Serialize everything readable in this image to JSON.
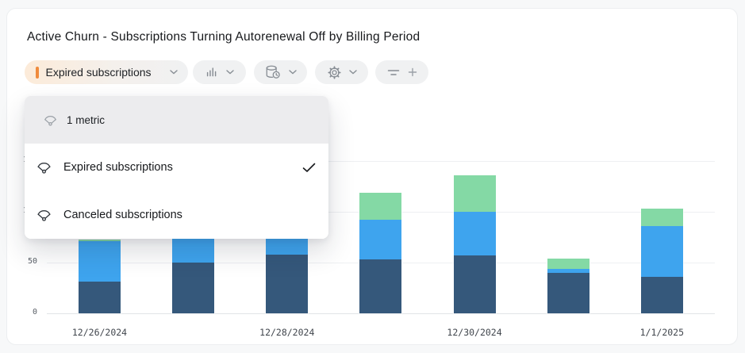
{
  "header": {
    "title": "Active Churn - Subscriptions Turning Autorenewal Off by Billing Period"
  },
  "toolbar": {
    "metric_button": {
      "label": "Expired subscriptions",
      "accent_color": "#f08b3c",
      "chevron_icon": "chevron-down-icon"
    },
    "chart_type_button": {
      "icon": "bar-chart-icon",
      "chevron_icon": "chevron-down-icon"
    },
    "data_source_button": {
      "icon": "database-clock-icon",
      "chevron_icon": "chevron-down-icon"
    },
    "settings_button": {
      "icon": "gear-icon",
      "chevron_icon": "chevron-down-icon"
    },
    "filter_button": {
      "icons": [
        "filter-lines-icon",
        "plus-icon"
      ]
    }
  },
  "metric_dropdown": {
    "header": {
      "icon": "gauge-icon",
      "label": "1 metric"
    },
    "items": [
      {
        "icon": "gauge-icon",
        "label": "Expired subscriptions",
        "selected": true
      },
      {
        "icon": "gauge-icon",
        "label": "Canceled subscriptions",
        "selected": false
      }
    ]
  },
  "chart_data": {
    "type": "bar",
    "stacked": true,
    "categories": [
      "12/26/2024",
      "",
      "12/28/2024",
      "",
      "12/30/2024",
      "",
      "1/1/2025"
    ],
    "x_tick_labels": [
      "12/26/2024",
      "12/28/2024",
      "12/30/2024",
      "1/1/2025"
    ],
    "y_ticks": [
      0,
      50,
      100,
      150
    ],
    "y_tick_labels": [
      "0",
      "50",
      "100",
      "150"
    ],
    "ylim": [
      0,
      150
    ],
    "grid": "horizontal",
    "legend": "none",
    "series": [
      {
        "name": "dark-blue",
        "color": "#35587b",
        "values": [
          31,
          50,
          58,
          53,
          57,
          40,
          36
        ]
      },
      {
        "name": "light-blue",
        "color": "#3ea4ee",
        "values": [
          40,
          24,
          22,
          39,
          43,
          4,
          50
        ]
      },
      {
        "name": "green",
        "color": "#84d9a5",
        "values": [
          2,
          3,
          4,
          27,
          36,
          10,
          17
        ]
      }
    ]
  }
}
